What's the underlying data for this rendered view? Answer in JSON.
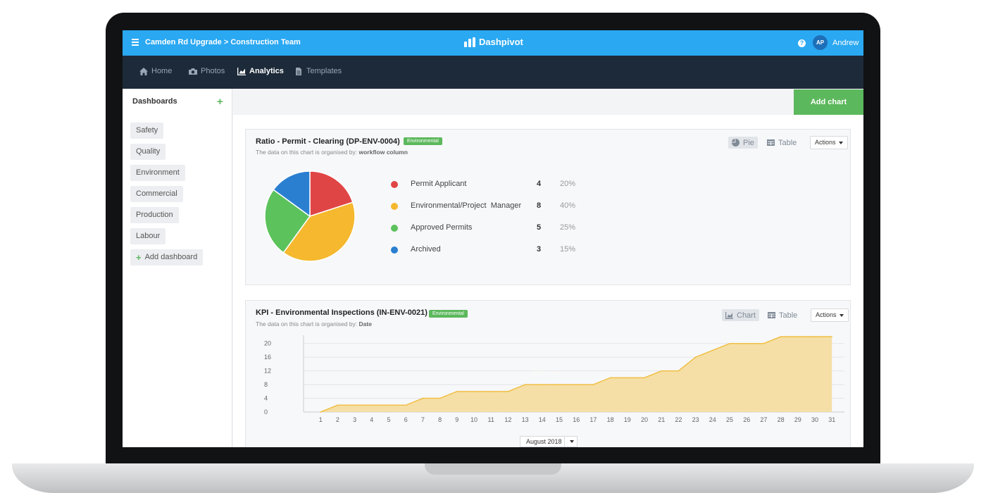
{
  "app": {
    "breadcrumb": "Camden Rd Upgrade > Construction Team",
    "brand": "Dashpivot",
    "help": "?",
    "user_initials": "AP",
    "user_name": "Andrew"
  },
  "nav": {
    "items": [
      {
        "label": "Home",
        "icon": "home-icon",
        "active": false
      },
      {
        "label": "Photos",
        "icon": "camera-icon",
        "active": false
      },
      {
        "label": "Analytics",
        "icon": "chart-icon",
        "active": true
      },
      {
        "label": "Templates",
        "icon": "document-icon",
        "active": false
      }
    ]
  },
  "sidebar": {
    "title": "Dashboards",
    "add_icon": "+",
    "items": [
      "Safety",
      "Quality",
      "Environment",
      "Commercial",
      "Production",
      "Labour"
    ],
    "add_dashboard": "Add dashboard"
  },
  "main": {
    "add_chart": "Add chart"
  },
  "card1": {
    "title": "Ratio - Permit - Clearing (DP-ENV-0004)",
    "tag": "Environmental",
    "subtitle_prefix": "The data on this chart is organised by:",
    "subtitle_value": "workflow column",
    "view_pie": "Pie",
    "view_table": "Table",
    "actions": "Actions"
  },
  "card2": {
    "title": "KPI - Environmental Inspections (IN-ENV-0021)",
    "tag": "Environmental",
    "subtitle_prefix": "The data on this chart is organised by:",
    "subtitle_value": "Date",
    "view_chart": "Chart",
    "view_table": "Table",
    "actions": "Actions",
    "watermark": "Add chart",
    "period": "August 2018"
  },
  "colors": {
    "accent_blue": "#2aa8f2",
    "nav_dark": "#1c2a39",
    "green": "#5cb85c",
    "area_fill": "#f5dfa6",
    "area_line": "#f1bf45"
  },
  "chart_data": [
    {
      "type": "pie",
      "categories": [
        "Permit Applicant",
        "Environmental/Project  Manager",
        "Approved Permits",
        "Archived"
      ],
      "values": [
        4,
        8,
        5,
        3
      ],
      "percentages": [
        "20%",
        "40%",
        "25%",
        "15%"
      ],
      "colors": [
        "#e04545",
        "#f5b82e",
        "#5cc25c",
        "#2b7fd1"
      ],
      "title": "Ratio - Permit - Clearing (DP-ENV-0004)"
    },
    {
      "type": "area",
      "title": "KPI - Environmental Inspections (IN-ENV-0021)",
      "x": [
        1,
        2,
        3,
        4,
        5,
        6,
        7,
        8,
        9,
        10,
        11,
        12,
        13,
        14,
        15,
        16,
        17,
        18,
        19,
        20,
        21,
        22,
        23,
        24,
        25,
        26,
        27,
        28,
        29,
        30,
        31
      ],
      "y": [
        0,
        2,
        2,
        2,
        2,
        2,
        4,
        4,
        6,
        6,
        6,
        6,
        8,
        8,
        8,
        8,
        8,
        10,
        10,
        10,
        12,
        12,
        16,
        18,
        20,
        20,
        20,
        22,
        22,
        22,
        22
      ],
      "y_ticks": [
        0,
        4,
        8,
        12,
        16,
        20
      ],
      "ylim": [
        0,
        22
      ],
      "grid": true,
      "xlabel": "August 2018"
    }
  ]
}
